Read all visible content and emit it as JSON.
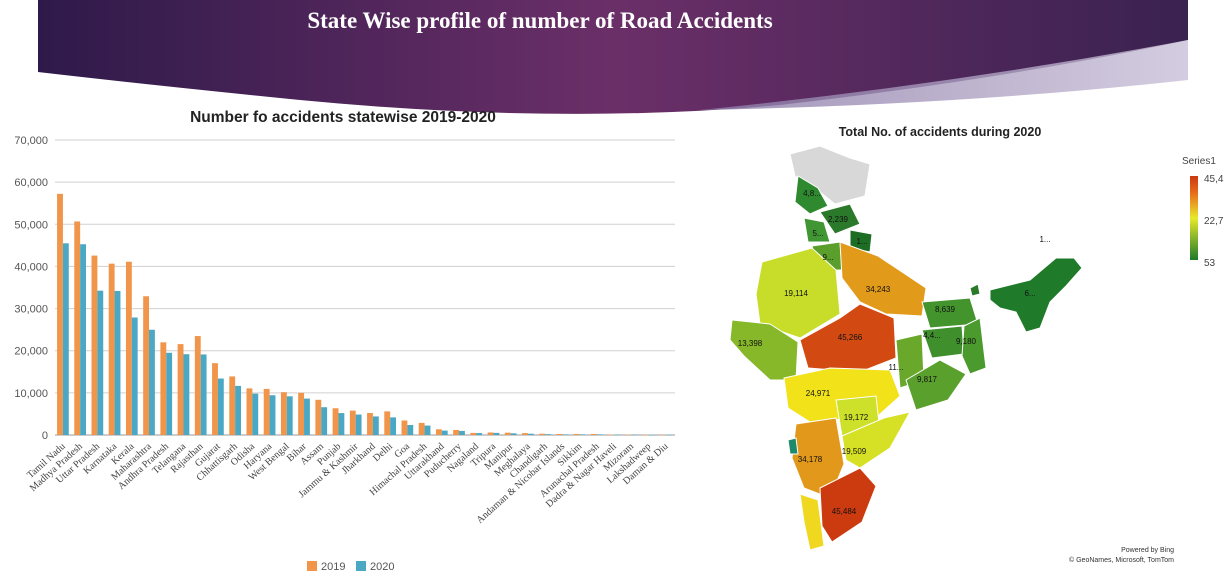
{
  "slide": {
    "title": "State Wise profile of number of Road Accidents"
  },
  "chart_data": [
    {
      "type": "bar",
      "title": "Number fo accidents statewise 2019-2020",
      "xlabel": "",
      "ylabel": "",
      "ylim": [
        0,
        70000
      ],
      "yticks": [
        "0",
        "10,000",
        "20,000",
        "30,000",
        "40,000",
        "50,000",
        "60,000",
        "70,000"
      ],
      "grid": true,
      "legend_placement": "bottom",
      "categories": [
        "Tamil Nadu",
        "Madhya Pradesh",
        "Uttar Pradesh",
        "Karnataka",
        "Kerala",
        "Maharashtra",
        "Andhra Pradesh",
        "Telangana",
        "Rajasthan",
        "Gujarat",
        "Chhattisgarh",
        "Odisha",
        "Haryana",
        "West Bengal",
        "Bihar",
        "Assam",
        "Punjab",
        "Jammu & Kashmir",
        "Jharkhand",
        "Delhi",
        "Goa",
        "Himachal Pradesh",
        "Uttarakhand",
        "Puducherry",
        "Nagaland",
        "Tripura",
        "Manipur",
        "Meghalaya",
        "Chandigarh",
        "Andaman & Nicobar Islands",
        "Sikkim",
        "Arunachal Pradesh",
        "Dadra & Nagar Haveli",
        "Mizoram",
        "Lakshadweep",
        "Daman & Diu"
      ],
      "series": [
        {
          "name": "2019",
          "color": "#f0954a",
          "values": [
            57228,
            50669,
            42572,
            40658,
            41111,
            32925,
            21992,
            21570,
            23480,
            17046,
            13899,
            11064,
            10944,
            10158,
            10007,
            8350,
            6348,
            5796,
            5217,
            5610,
            3440,
            2873,
            1352,
            1200,
            500,
            600,
            550,
            450,
            300,
            250,
            250,
            250,
            100,
            100,
            20,
            60
          ]
        },
        {
          "name": "2020",
          "color": "#4aa8c4",
          "values": [
            45484,
            45266,
            34243,
            34178,
            27877,
            24971,
            19509,
            19172,
            19114,
            13398,
            11656,
            9817,
            9431,
            9180,
            8639,
            6595,
            5203,
            4860,
            4405,
            4178,
            2375,
            2239,
            1041,
            969,
            450,
            500,
            400,
            300,
            200,
            150,
            150,
            150,
            80,
            80,
            5,
            53
          ]
        }
      ]
    },
    {
      "type": "map",
      "title": "Total No. of accidents during 2020",
      "legend_title": "Series1",
      "legend_ticks": [
        "45,4",
        "22,7",
        "53"
      ],
      "scale_colors": [
        "#1e7a2a",
        "#e8e82a",
        "#e86a1a",
        "#cc3a10"
      ],
      "region_labels": [
        "4,8...",
        "2,239",
        "5...",
        "1...",
        "9...",
        "19,114",
        "34,243",
        "8,639",
        "1...",
        "6...",
        "13,398",
        "45,266",
        "4,4...",
        "9,180",
        "11...",
        "9,817",
        "24,971",
        "19,172",
        "34,178",
        "19,509",
        "45,484"
      ],
      "attribution": [
        "Powered by Bing",
        "© GeoNames, Microsoft, TomTom"
      ]
    }
  ]
}
